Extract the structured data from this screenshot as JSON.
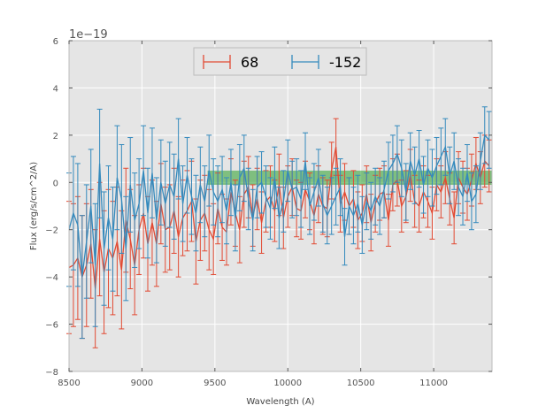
{
  "chart_data": {
    "type": "line",
    "title": "",
    "xlabel": "Wavelength (A)",
    "ylabel": "Flux (erg/s/cm^2/A)",
    "y_offset_label": "1e−19",
    "xlim": [
      8500,
      11400
    ],
    "ylim": [
      -8,
      6
    ],
    "y_scale_factor": 1e-19,
    "x_ticks": [
      8500,
      9000,
      9500,
      10000,
      10500,
      11000
    ],
    "x_tick_labels": [
      "8500",
      "9000",
      "9500",
      "10000",
      "10500",
      "11000"
    ],
    "y_ticks": [
      -8,
      -6,
      -4,
      -2,
      0,
      2,
      4,
      6
    ],
    "y_tick_labels": [
      "−8",
      "−6",
      "−4",
      "−2",
      "0",
      "2",
      "4",
      "6"
    ],
    "grid": true,
    "legend": {
      "placement": "top-center",
      "ncol": 2
    },
    "band": {
      "x": [
        9450,
        11400
      ],
      "y": [
        -0.1,
        0.5
      ],
      "color": "#2ca02c"
    },
    "series": [
      {
        "name": "68",
        "color": "#e24a33",
        "x": [
          8500,
          8530,
          8560,
          8590,
          8620,
          8650,
          8680,
          8710,
          8740,
          8770,
          8800,
          8830,
          8860,
          8890,
          8920,
          8950,
          8980,
          9010,
          9040,
          9070,
          9100,
          9130,
          9160,
          9190,
          9220,
          9250,
          9280,
          9310,
          9340,
          9370,
          9400,
          9430,
          9460,
          9490,
          9520,
          9550,
          9580,
          9610,
          9640,
          9670,
          9700,
          9730,
          9760,
          9790,
          9820,
          9850,
          9880,
          9910,
          9940,
          9970,
          10000,
          10030,
          10060,
          10090,
          10120,
          10150,
          10180,
          10210,
          10240,
          10270,
          10300,
          10330,
          10360,
          10390,
          10420,
          10450,
          10480,
          10510,
          10540,
          10570,
          10600,
          10630,
          10660,
          10690,
          10720,
          10750,
          10780,
          10810,
          10840,
          10870,
          10900,
          10930,
          10960,
          10990,
          11020,
          11050,
          11080,
          11110,
          11140,
          11170,
          11200,
          11230,
          11260,
          11290,
          11320,
          11350,
          11380
        ],
        "y": [
          -3.6,
          -3.5,
          -3.2,
          -4.0,
          -3.5,
          -2.6,
          -4.5,
          -2.4,
          -3.8,
          -2.8,
          -3.2,
          -2.5,
          -3.7,
          -1.6,
          -2.4,
          -3.5,
          -2.0,
          -1.3,
          -2.6,
          -1.7,
          -2.6,
          -0.9,
          -2.0,
          -1.9,
          -1.2,
          -2.3,
          -1.5,
          -1.2,
          -0.8,
          -2.5,
          -1.6,
          -1.3,
          -2.0,
          -2.4,
          -1.1,
          -1.9,
          -2.1,
          -0.4,
          -1.3,
          -2.0,
          -0.5,
          -0.2,
          -1.4,
          -0.7,
          -1.7,
          -0.8,
          -0.6,
          -1.2,
          -0.1,
          -1.5,
          -0.6,
          -0.2,
          -1.1,
          -1.2,
          -0.3,
          -0.8,
          -1.4,
          -0.5,
          -1.0,
          -1.1,
          0.5,
          1.5,
          -0.9,
          -0.4,
          -1.0,
          -0.7,
          -1.6,
          -1.3,
          -0.5,
          -1.7,
          -0.9,
          -0.5,
          -0.4,
          -1.6,
          -0.1,
          0.1,
          -1.0,
          -0.6,
          0.3,
          -0.8,
          -1.0,
          -0.4,
          -0.8,
          -1.3,
          -0.1,
          -0.4,
          0.2,
          -0.7,
          -1.5,
          0.2,
          -0.2,
          -0.5,
          0.1,
          0.8,
          0.2,
          0.9,
          0.7
        ],
        "err": [
          2.8,
          2.6,
          2.6,
          2.6,
          2.6,
          2.3,
          2.5,
          2.4,
          2.6,
          2.5,
          2.4,
          2.3,
          2.5,
          2.2,
          2.1,
          2.1,
          1.9,
          1.9,
          2.0,
          1.8,
          1.8,
          1.7,
          1.8,
          1.8,
          1.8,
          1.7,
          1.6,
          1.7,
          1.7,
          1.8,
          1.7,
          1.6,
          1.7,
          1.5,
          1.5,
          1.4,
          1.4,
          1.4,
          1.4,
          1.4,
          1.4,
          1.3,
          1.3,
          1.3,
          1.3,
          1.3,
          1.3,
          1.3,
          1.3,
          1.3,
          1.3,
          1.2,
          1.2,
          1.2,
          1.2,
          1.2,
          1.2,
          1.2,
          1.2,
          1.2,
          1.2,
          1.2,
          1.2,
          1.2,
          1.2,
          1.2,
          1.2,
          1.2,
          1.2,
          1.2,
          1.2,
          1.1,
          1.1,
          1.1,
          1.1,
          1.1,
          1.1,
          1.1,
          1.1,
          1.1,
          1.1,
          1.1,
          1.1,
          1.1,
          1.1,
          1.1,
          1.1,
          1.1,
          1.1,
          1.1,
          1.1,
          1.1,
          1.1,
          1.1,
          1.1,
          1.1,
          1.1
        ]
      },
      {
        "name": "-152",
        "color": "#348abd",
        "x": [
          8500,
          8530,
          8560,
          8590,
          8620,
          8650,
          8680,
          8710,
          8740,
          8770,
          8800,
          8830,
          8860,
          8890,
          8920,
          8950,
          8980,
          9010,
          9040,
          9070,
          9100,
          9130,
          9160,
          9190,
          9220,
          9250,
          9280,
          9310,
          9340,
          9370,
          9400,
          9430,
          9460,
          9490,
          9520,
          9550,
          9580,
          9610,
          9640,
          9670,
          9700,
          9730,
          9760,
          9790,
          9820,
          9850,
          9880,
          9910,
          9940,
          9970,
          10000,
          10030,
          10060,
          10090,
          10120,
          10150,
          10180,
          10210,
          10240,
          10270,
          10300,
          10330,
          10360,
          10390,
          10420,
          10450,
          10480,
          10510,
          10540,
          10570,
          10600,
          10630,
          10660,
          10690,
          10720,
          10750,
          10780,
          10810,
          10840,
          10870,
          10900,
          10930,
          10960,
          10990,
          11020,
          11050,
          11080,
          11110,
          11140,
          11170,
          11200,
          11230,
          11260,
          11290,
          11320,
          11350,
          11380
        ],
        "y": [
          -2.0,
          -1.3,
          -1.8,
          -4.0,
          -2.5,
          -1.0,
          -3.5,
          0.8,
          -2.8,
          -1.5,
          -2.4,
          0.2,
          -0.7,
          -2.8,
          -0.1,
          -1.6,
          -0.9,
          0.5,
          -1.3,
          0.4,
          -1.6,
          0.0,
          -0.9,
          -0.1,
          -0.6,
          1.0,
          -0.9,
          0.3,
          -0.6,
          -1.3,
          -0.1,
          -0.8,
          0.5,
          -0.4,
          -0.8,
          -0.3,
          -1.2,
          0.0,
          -1.5,
          0.2,
          0.6,
          -0.7,
          -1.6,
          -0.2,
          0.0,
          -0.6,
          -1.1,
          0.2,
          -1.5,
          -0.8,
          0.5,
          -0.3,
          -0.2,
          -0.7,
          0.9,
          -1.0,
          -0.4,
          0.2,
          -0.9,
          -1.4,
          -1.0,
          -0.6,
          -0.2,
          -2.3,
          -1.0,
          -1.4,
          -0.9,
          -1.8,
          -0.8,
          -1.2,
          -0.6,
          -1.0,
          -0.3,
          0.5,
          0.8,
          1.2,
          0.6,
          -0.4,
          0.9,
          0.3,
          1.0,
          -0.1,
          0.6,
          0.2,
          0.7,
          1.1,
          1.5,
          0.3,
          0.9,
          -0.2,
          -0.6,
          0.4,
          -0.8,
          -0.5,
          0.9,
          2.0,
          1.8
        ],
        "err": [
          2.4,
          2.4,
          2.6,
          2.6,
          2.4,
          2.4,
          2.6,
          2.3,
          2.4,
          2.2,
          2.2,
          2.2,
          2.3,
          2.2,
          2.0,
          2.0,
          1.9,
          1.9,
          1.9,
          1.9,
          1.8,
          1.8,
          1.8,
          1.8,
          1.8,
          1.7,
          1.6,
          1.6,
          1.6,
          1.6,
          1.6,
          1.5,
          1.5,
          1.4,
          1.5,
          1.4,
          1.4,
          1.4,
          1.4,
          1.4,
          1.4,
          1.3,
          1.3,
          1.3,
          1.3,
          1.3,
          1.3,
          1.3,
          1.3,
          1.3,
          1.3,
          1.2,
          1.2,
          1.2,
          1.2,
          1.2,
          1.2,
          1.2,
          1.2,
          1.2,
          1.2,
          1.2,
          1.2,
          1.2,
          1.2,
          1.2,
          1.2,
          1.2,
          1.2,
          1.2,
          1.2,
          1.2,
          1.2,
          1.2,
          1.2,
          1.2,
          1.2,
          1.2,
          1.2,
          1.2,
          1.2,
          1.2,
          1.2,
          1.2,
          1.2,
          1.2,
          1.2,
          1.2,
          1.2,
          1.2,
          1.2,
          1.2,
          1.2,
          1.2,
          1.2,
          1.2,
          1.2
        ]
      }
    ]
  }
}
